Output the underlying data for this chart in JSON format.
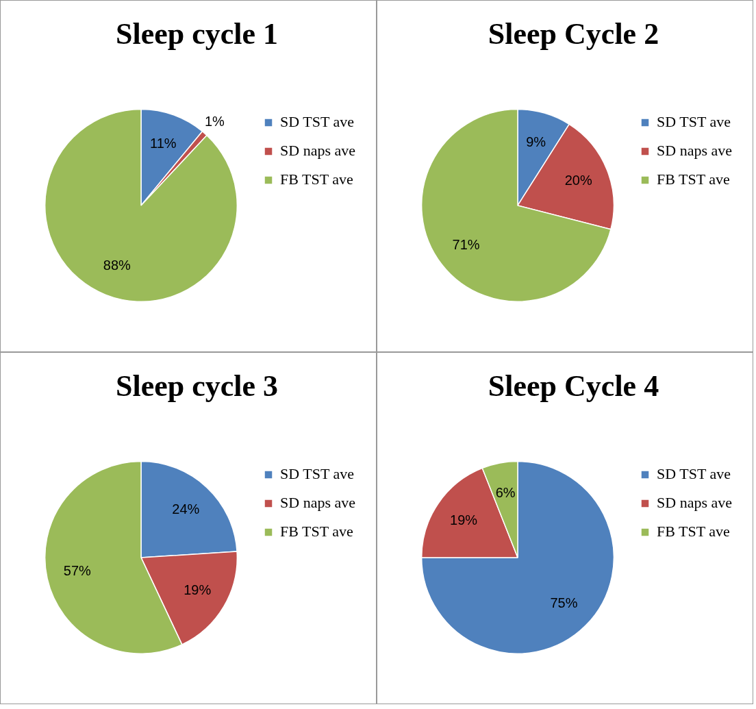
{
  "chart_data": [
    {
      "type": "pie",
      "title": "Sleep cycle 1",
      "categories": [
        "SD TST ave",
        "SD naps ave",
        "FB TST ave"
      ],
      "values": [
        11,
        1,
        88
      ],
      "value_labels": [
        "11%",
        "1%",
        "88%"
      ],
      "colors": [
        "#4f81bd",
        "#c0504d",
        "#9bbb59"
      ],
      "legend": "right"
    },
    {
      "type": "pie",
      "title": "Sleep Cycle 2",
      "categories": [
        "SD TST ave",
        "SD naps ave",
        "FB TST ave"
      ],
      "values": [
        9,
        20,
        71
      ],
      "value_labels": [
        "9%",
        "20%",
        "71%"
      ],
      "colors": [
        "#4f81bd",
        "#c0504d",
        "#9bbb59"
      ],
      "legend": "right"
    },
    {
      "type": "pie",
      "title": "Sleep cycle 3",
      "categories": [
        "SD TST ave",
        "SD naps ave",
        "FB TST ave"
      ],
      "values": [
        24,
        19,
        57
      ],
      "value_labels": [
        "24%",
        "19%",
        "57%"
      ],
      "colors": [
        "#4f81bd",
        "#c0504d",
        "#9bbb59"
      ],
      "legend": "right"
    },
    {
      "type": "pie",
      "title": "Sleep Cycle 4",
      "categories": [
        "SD TST ave",
        "SD naps ave",
        "FB TST ave"
      ],
      "values": [
        75,
        19,
        6
      ],
      "value_labels": [
        "75%",
        "19%",
        "6%"
      ],
      "colors": [
        "#4f81bd",
        "#c0504d",
        "#9bbb59"
      ],
      "legend": "right"
    }
  ]
}
